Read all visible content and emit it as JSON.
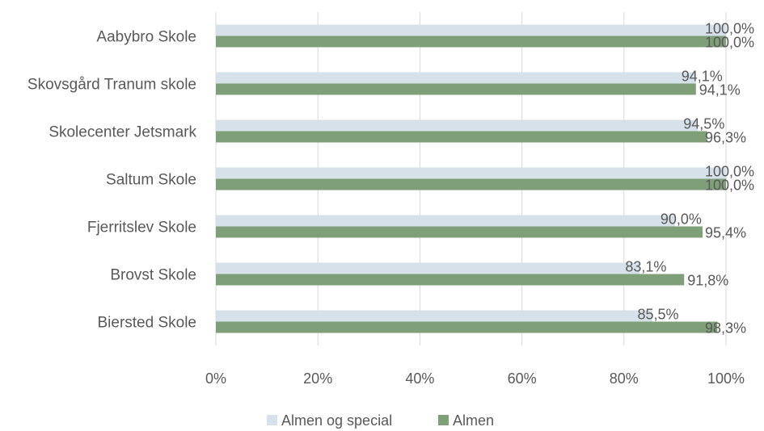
{
  "chart_data": {
    "type": "bar",
    "orientation": "horizontal",
    "categories": [
      "Aabybro Skole",
      "Skovsgård Tranum skole",
      "Skolecenter Jetsmark",
      "Saltum Skole",
      "Fjerritslev Skole",
      "Brovst Skole",
      "Biersted Skole"
    ],
    "series": [
      {
        "name": "Almen og special",
        "color": "#d6e1ea",
        "values": [
          100.0,
          94.1,
          94.5,
          100.0,
          90.0,
          83.1,
          85.5
        ],
        "labels": [
          "100,0%",
          "94,1%",
          "94,5%",
          "100,0%",
          "90,0%",
          "83,1%",
          "85,5%"
        ]
      },
      {
        "name": "Almen",
        "color": "#7f9f78",
        "values": [
          100.0,
          94.1,
          96.3,
          100.0,
          95.4,
          91.8,
          98.3
        ],
        "labels": [
          "100,0%",
          "94,1%",
          "96,3%",
          "100,0%",
          "95,4%",
          "91,8%",
          "98,3%"
        ]
      }
    ],
    "xlim": [
      0,
      100
    ],
    "xticks": [
      0,
      20,
      40,
      60,
      80,
      100
    ],
    "xtick_labels": [
      "0%",
      "20%",
      "40%",
      "60%",
      "80%",
      "100%"
    ],
    "grid": true,
    "legend_position": "bottom-center"
  }
}
